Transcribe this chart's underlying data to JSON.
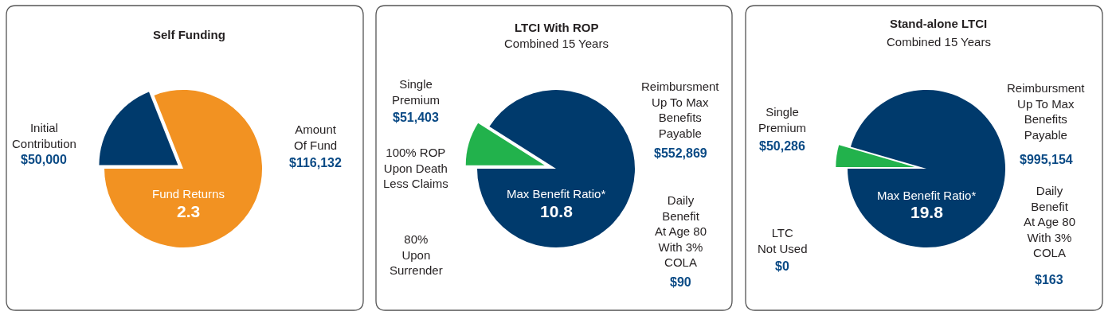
{
  "chart_data": [
    {
      "type": "pie",
      "title": "Self Funding",
      "categories": [
        null,
        null
      ],
      "values": [
        19,
        81
      ],
      "colors": [
        "#003a6c",
        "#f29222"
      ],
      "annotations": [
        "Initial\nContribution",
        "$50,000",
        "Amount\nOf Fund",
        "$116,132",
        "Fund Returns",
        "2.3"
      ]
    },
    {
      "type": "pie",
      "title": "LTCI With ROP",
      "subtitle": "Combined 15 Years",
      "categories": [
        null,
        null
      ],
      "values": [
        9,
        91
      ],
      "colors": [
        "#22b24c",
        "#003a6c"
      ],
      "annotations": [
        "Single\nPremium",
        "$51,403",
        "100% ROP\nUpon Death\nLess Claims",
        "80%\nUpon\nSurrender",
        "Reimbursment\nUp To Max\nBenefits\nPayable",
        "$552,869",
        "Daily\nBenefit\nAt Age 80\nWith 3%\nCOLA",
        "$90",
        "Max Benefit Ratio*",
        "10.8"
      ]
    },
    {
      "type": "pie",
      "title": "Stand-alone LTCI",
      "subtitle": "Combined 15 Years",
      "categories": [
        null,
        null
      ],
      "values": [
        4.5,
        95.5
      ],
      "colors": [
        "#22b24c",
        "#003a6c"
      ],
      "annotations": [
        "Single\nPremium",
        "$50,286",
        "LTC\nNot Used",
        "$0",
        "Reimbursment\nUp To Max\nBenefits\nPayable",
        "$995,154",
        "Daily\nBenefit\nAt Age 80\nWith 3%\nCOLA",
        "$163",
        "Max Benefit Ratio*",
        "19.8"
      ]
    }
  ]
}
